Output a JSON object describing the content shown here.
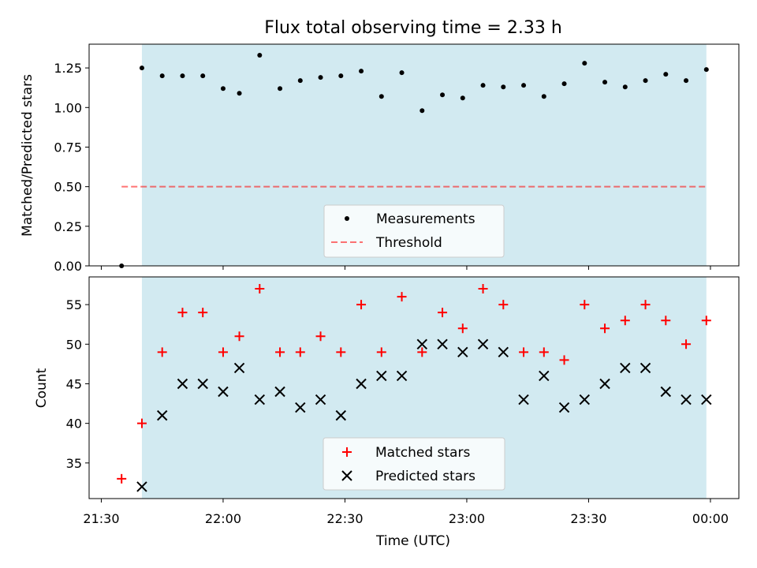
{
  "chart_data": {
    "type": "scatter",
    "title": "Flux total observing time = 2.33 h",
    "xlabel": "Time (UTC)",
    "x_ticks": [
      "21:30",
      "22:00",
      "22:30",
      "23:00",
      "23:30",
      "00:00"
    ],
    "x_range": [
      "21:27",
      "00:07"
    ],
    "observing_window": [
      "21:40",
      "23:59"
    ],
    "colors": {
      "window": "#add8e6",
      "measurements": "#000000",
      "threshold": "#ff0000",
      "matched": "#ff0000",
      "predicted": "#000000"
    },
    "panels": [
      {
        "ylabel": "Matched/Predicted stars",
        "ylim": [
          0.0,
          1.4
        ],
        "y_ticks": [
          "0.00",
          "0.25",
          "0.50",
          "0.75",
          "1.00",
          "1.25"
        ],
        "legend_position": "lower center",
        "series": [
          {
            "name": "Measurements",
            "marker": "dot",
            "x": [
              "21:35",
              "21:40",
              "21:45",
              "21:50",
              "21:55",
              "22:00",
              "22:04",
              "22:09",
              "22:14",
              "22:19",
              "22:24",
              "22:29",
              "22:34",
              "22:39",
              "22:44",
              "22:49",
              "22:54",
              "22:59",
              "23:04",
              "23:09",
              "23:14",
              "23:19",
              "23:24",
              "23:29",
              "23:34",
              "23:39",
              "23:44",
              "23:49",
              "23:54",
              "23:59"
            ],
            "y": [
              0.0,
              1.25,
              1.2,
              1.2,
              1.2,
              1.12,
              1.09,
              1.33,
              1.12,
              1.17,
              1.19,
              1.2,
              1.23,
              1.07,
              1.22,
              0.98,
              1.08,
              1.06,
              1.14,
              1.13,
              1.14,
              1.07,
              1.15,
              1.28,
              1.16,
              1.13,
              1.17,
              1.21,
              1.17,
              1.24
            ]
          },
          {
            "name": "Threshold",
            "marker": "dashed-line",
            "x": [
              "21:35",
              "23:59"
            ],
            "y": [
              0.5,
              0.5
            ]
          }
        ]
      },
      {
        "ylabel": "Count",
        "ylim": [
          30.5,
          58.5
        ],
        "y_ticks": [
          "35",
          "40",
          "45",
          "50",
          "55"
        ],
        "legend_position": "lower center",
        "series": [
          {
            "name": "Matched stars",
            "marker": "plus",
            "x": [
              "21:35",
              "21:40",
              "21:45",
              "21:50",
              "21:55",
              "22:00",
              "22:04",
              "22:09",
              "22:14",
              "22:19",
              "22:24",
              "22:29",
              "22:34",
              "22:39",
              "22:44",
              "22:49",
              "22:54",
              "22:59",
              "23:04",
              "23:09",
              "23:14",
              "23:19",
              "23:24",
              "23:29",
              "23:34",
              "23:39",
              "23:44",
              "23:49",
              "23:54",
              "23:59"
            ],
            "y": [
              33,
              40,
              49,
              54,
              54,
              49,
              51,
              57,
              49,
              49,
              51,
              49,
              55,
              49,
              56,
              49,
              54,
              52,
              57,
              55,
              49,
              49,
              48,
              55,
              52,
              53,
              55,
              53,
              50,
              53
            ]
          },
          {
            "name": "Predicted stars",
            "marker": "x",
            "x": [
              "21:40",
              "21:45",
              "21:50",
              "21:55",
              "22:00",
              "22:04",
              "22:09",
              "22:14",
              "22:19",
              "22:24",
              "22:29",
              "22:34",
              "22:39",
              "22:44",
              "22:49",
              "22:54",
              "22:59",
              "23:04",
              "23:09",
              "23:14",
              "23:19",
              "23:24",
              "23:29",
              "23:34",
              "23:39",
              "23:44",
              "23:49",
              "23:54",
              "23:59"
            ],
            "y": [
              32,
              41,
              45,
              45,
              44,
              47,
              43,
              44,
              42,
              43,
              41,
              45,
              46,
              46,
              50,
              50,
              49,
              50,
              49,
              43,
              46,
              42,
              43,
              45,
              47,
              47,
              44,
              43,
              43
            ]
          }
        ]
      }
    ]
  }
}
